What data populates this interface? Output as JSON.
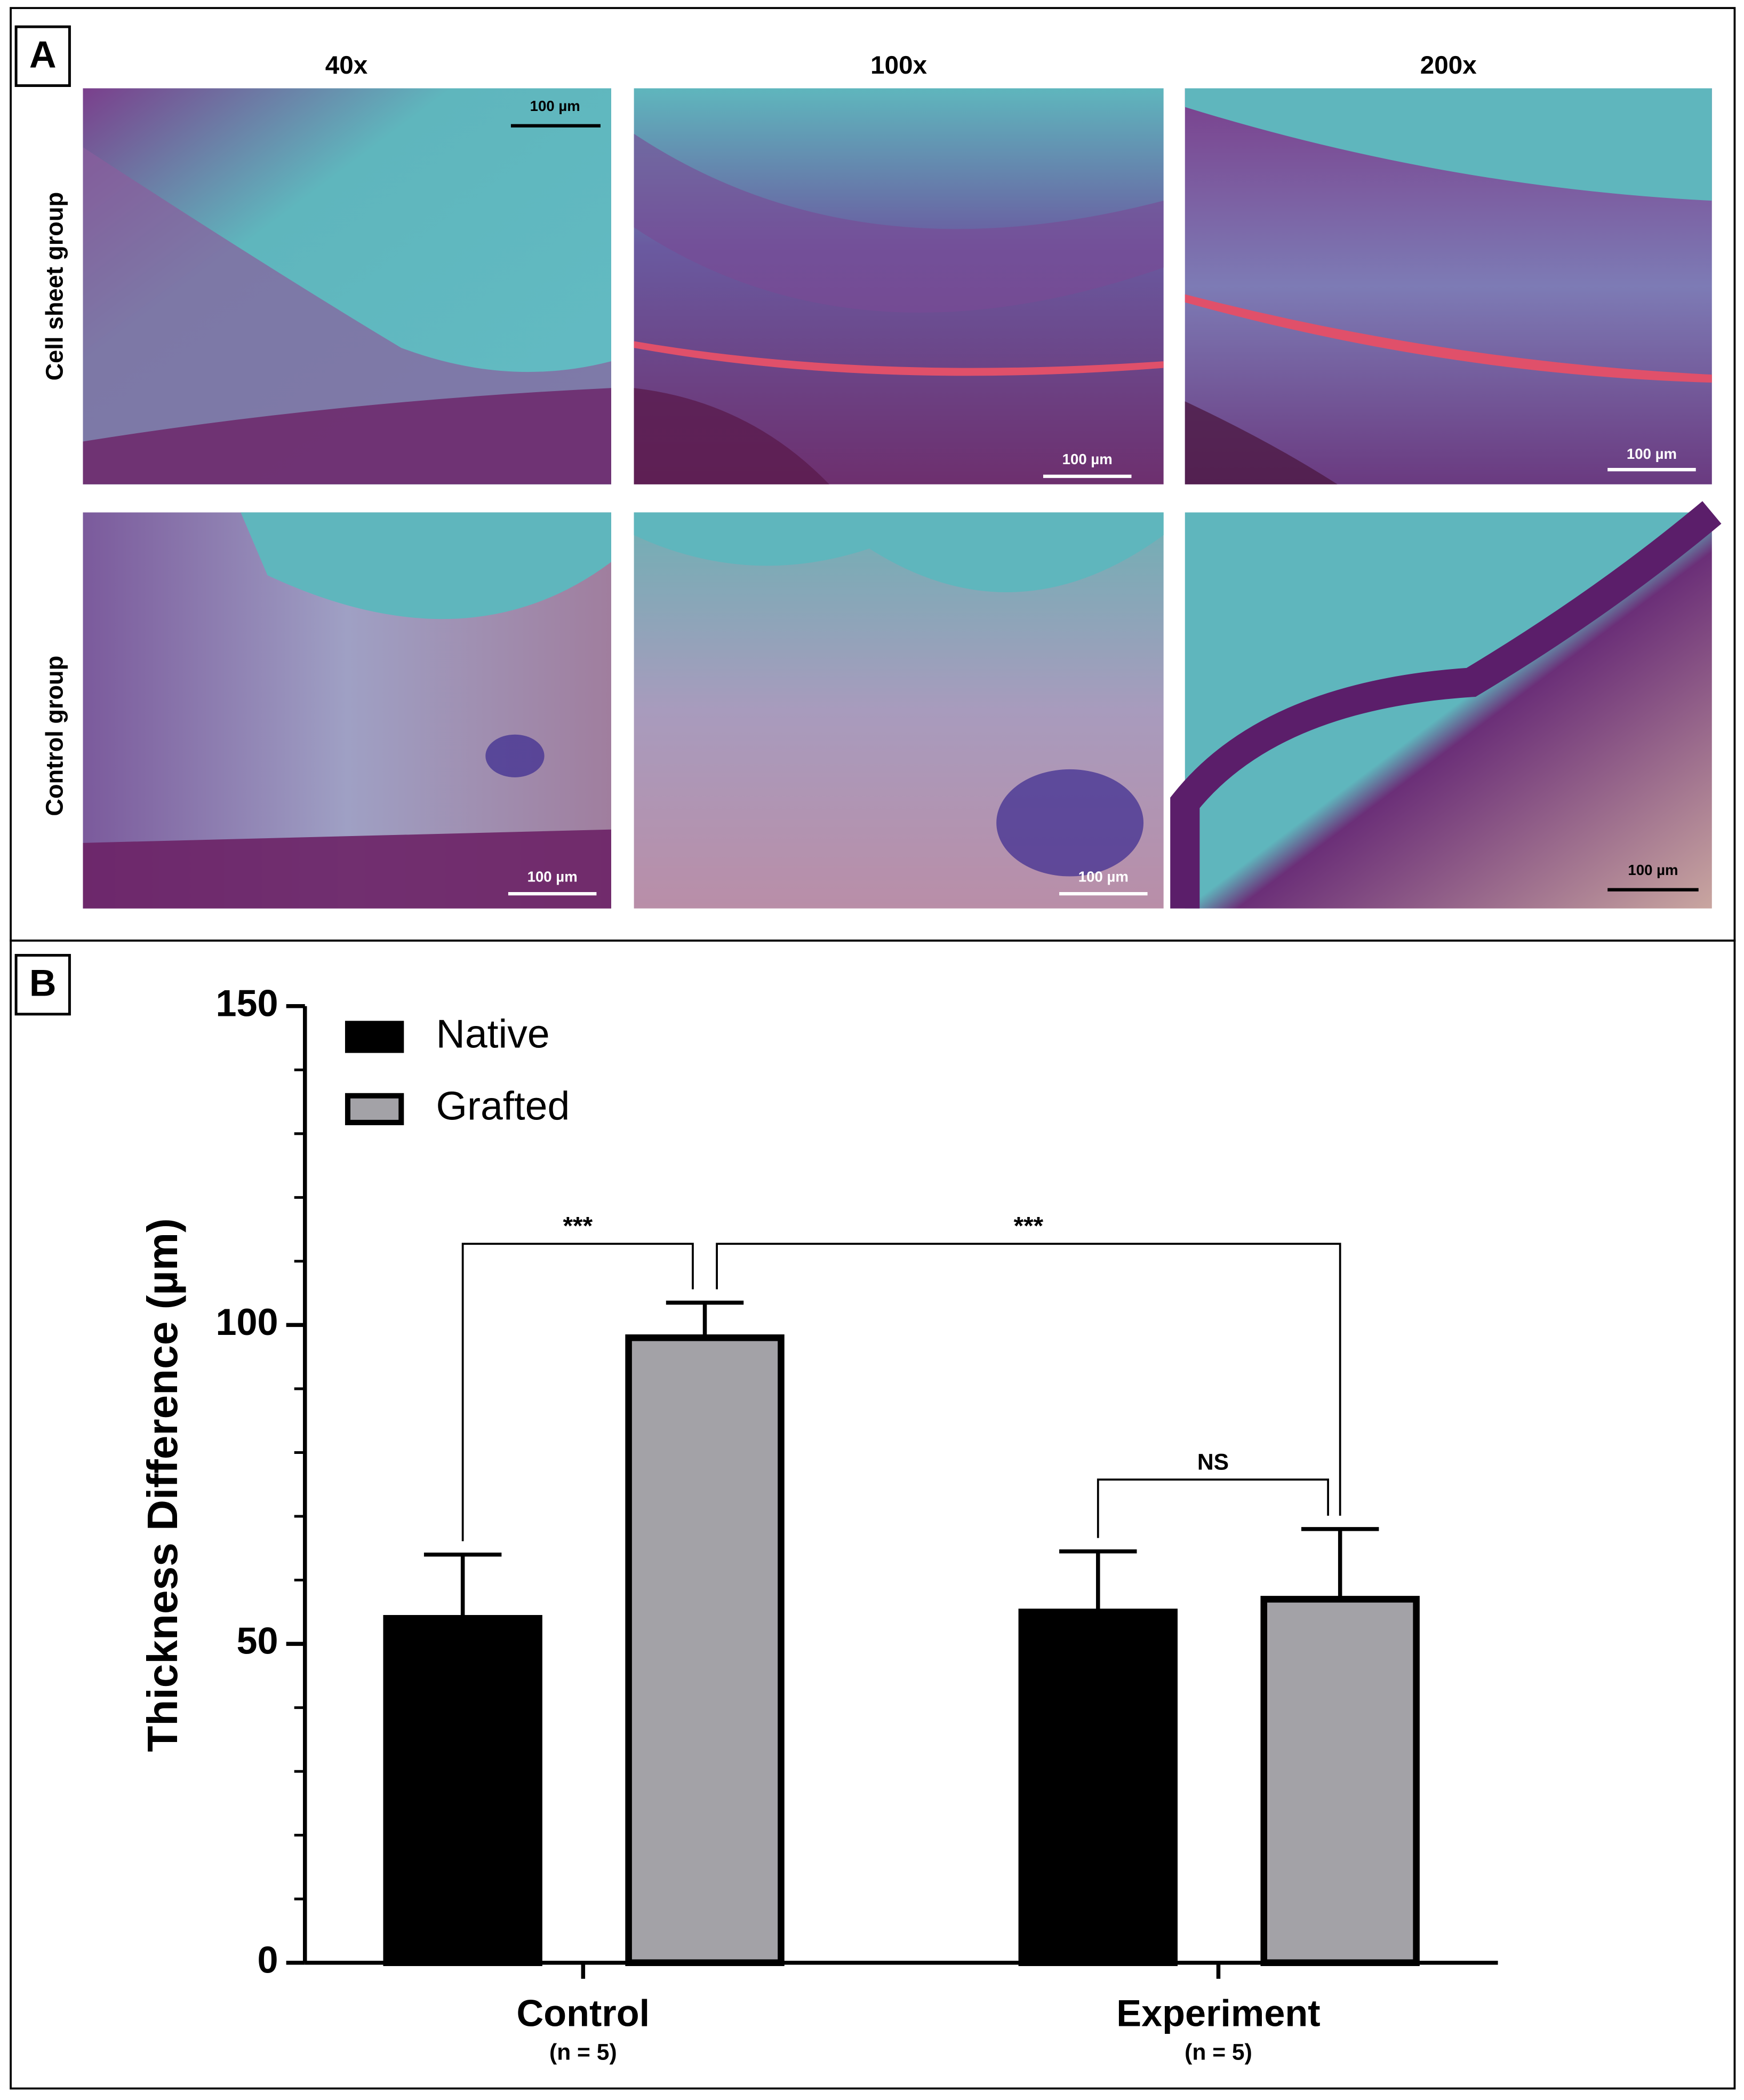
{
  "panel_labels": [
    "A",
    "B"
  ],
  "micrographs": {
    "columns": [
      "40x",
      "100x",
      "200x"
    ],
    "rows": [
      "Cell sheet group",
      "Control group"
    ],
    "scale_bar_labels": [
      "100 µm",
      "100 µm",
      "100 µm",
      "100 µm",
      "100 µm",
      "100 µm"
    ]
  },
  "chart_data": {
    "type": "bar",
    "y_label": "Thickness Difference (µm)",
    "categories": [
      "Control",
      "Experiment"
    ],
    "category_notes": [
      "(n = 5)",
      "(n = 5)"
    ],
    "series": [
      {
        "name": "Native",
        "color": "#000000",
        "values": [
          54,
          55
        ],
        "errors": [
          10,
          9.5
        ]
      },
      {
        "name": "Grafted",
        "color": "#a3a2a7",
        "values": [
          98,
          57
        ],
        "errors": [
          5.5,
          11
        ]
      }
    ],
    "ylim": [
      0,
      150
    ],
    "yticks": [
      0,
      50,
      100,
      150
    ],
    "minor_yticks": [
      10,
      20,
      30,
      40,
      60,
      70,
      80,
      90,
      110,
      120,
      130,
      140
    ],
    "annotations": [
      "***",
      "***",
      "NS"
    ],
    "legend": "upper left"
  }
}
